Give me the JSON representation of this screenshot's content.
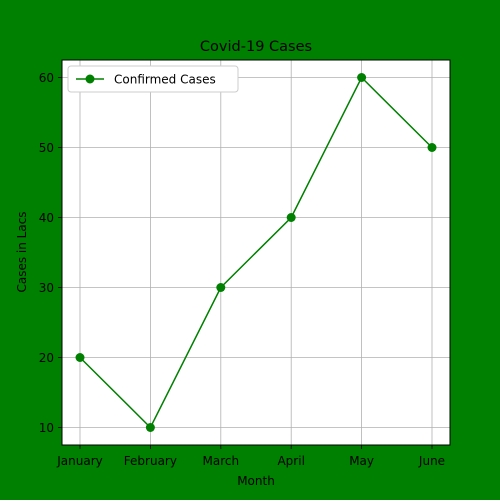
{
  "colors": {
    "figure_background": "#008000",
    "plot_background": "#ffffff",
    "line": "#008000",
    "grid": "#b0b0b0",
    "text": "#000000"
  },
  "chart_data": {
    "type": "line",
    "title": "Covid-19 Cases",
    "xlabel": "Month",
    "ylabel": "Cases in Lacs",
    "categories": [
      "January",
      "February",
      "March",
      "April",
      "May",
      "June"
    ],
    "ylim": [
      7.5,
      62.5
    ],
    "yticks": [
      10,
      20,
      30,
      40,
      50,
      60
    ],
    "grid": true,
    "legend_position": "upper-left",
    "marker": "circle",
    "series": [
      {
        "name": "Confirmed Cases",
        "values": [
          20,
          10,
          30,
          40,
          60,
          50
        ]
      }
    ]
  }
}
